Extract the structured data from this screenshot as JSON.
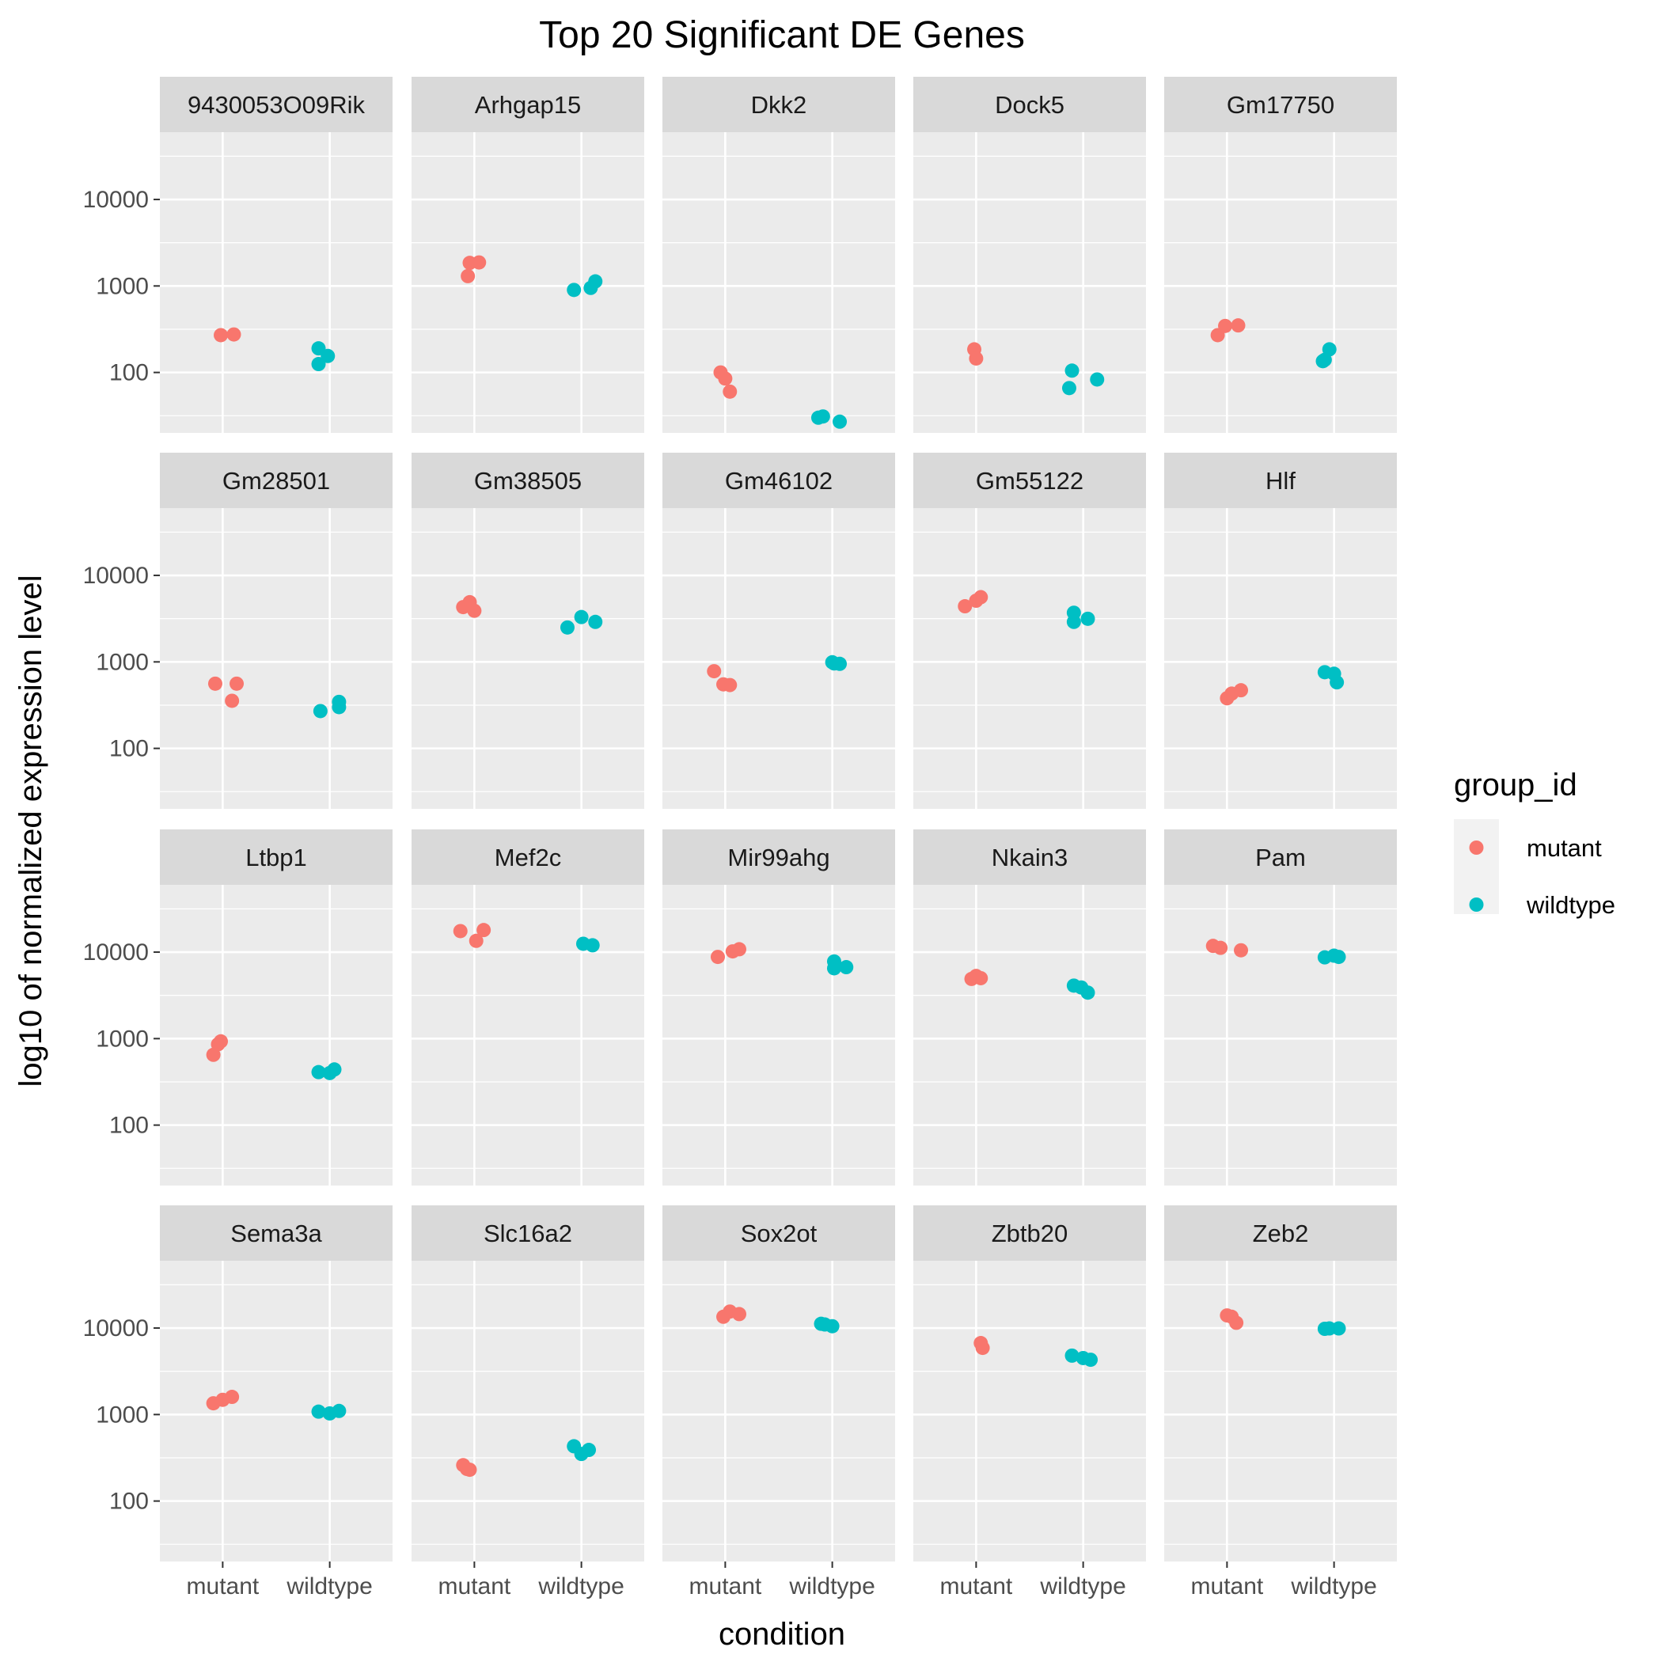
{
  "chart_data": {
    "type": "scatter",
    "title": "Top 20 Significant DE Genes",
    "xlabel": "condition",
    "ylabel": "log10 of normalized expression level",
    "x_categories": [
      "mutant",
      "wildtype"
    ],
    "y_scale": "log10",
    "y_range": [
      20,
      60000
    ],
    "y_ticks": [
      100,
      1000,
      10000
    ],
    "y_tick_labels": [
      "100",
      "1000",
      "10000"
    ],
    "grid": true,
    "facet_layout": {
      "rows": 4,
      "cols": 5
    },
    "legend": {
      "title": "group_id",
      "placement": "right",
      "entries": [
        {
          "label": "mutant",
          "color": "#F8766D"
        },
        {
          "label": "wildtype",
          "color": "#00BFC4"
        }
      ]
    },
    "colors": {
      "mutant": "#F8766D",
      "wildtype": "#00BFC4",
      "panel_bg": "#EBEBEB",
      "strip_bg": "#D9D9D9",
      "grid": "#FFFFFF"
    },
    "panels": [
      {
        "gene": "9430053O09Rik",
        "mutant": [
          [
            -0.02,
            270
          ],
          [
            0.12,
            275
          ]
        ],
        "wildtype": [
          [
            -0.12,
            190
          ],
          [
            -0.12,
            125
          ],
          [
            -0.02,
            155
          ]
        ]
      },
      {
        "gene": "Arhgap15",
        "mutant": [
          [
            -0.07,
            1300
          ],
          [
            -0.05,
            1850
          ],
          [
            0.05,
            1870
          ]
        ],
        "wildtype": [
          [
            -0.08,
            900
          ],
          [
            0.1,
            950
          ],
          [
            0.15,
            1130
          ]
        ]
      },
      {
        "gene": "Dkk2",
        "mutant": [
          [
            -0.05,
            100
          ],
          [
            0.0,
            85
          ],
          [
            0.05,
            60
          ]
        ],
        "wildtype": [
          [
            -0.15,
            30
          ],
          [
            -0.1,
            31
          ],
          [
            0.08,
            27
          ]
        ]
      },
      {
        "gene": "Dock5",
        "mutant": [
          [
            -0.02,
            185
          ],
          [
            0.0,
            145
          ]
        ],
        "wildtype": [
          [
            -0.15,
            66
          ],
          [
            -0.12,
            105
          ],
          [
            0.15,
            83
          ]
        ]
      },
      {
        "gene": "Gm17750",
        "mutant": [
          [
            -0.1,
            270
          ],
          [
            -0.02,
            345
          ],
          [
            0.12,
            350
          ]
        ],
        "wildtype": [
          [
            -0.12,
            135
          ],
          [
            -0.1,
            140
          ],
          [
            -0.05,
            185
          ]
        ]
      },
      {
        "gene": "Gm28501",
        "mutant": [
          [
            -0.08,
            560
          ],
          [
            0.1,
            355
          ],
          [
            0.15,
            560
          ]
        ],
        "wildtype": [
          [
            -0.1,
            270
          ],
          [
            0.1,
            345
          ],
          [
            0.1,
            300
          ]
        ]
      },
      {
        "gene": "Gm38505",
        "mutant": [
          [
            -0.12,
            4300
          ],
          [
            -0.05,
            4900
          ],
          [
            0.0,
            3900
          ]
        ],
        "wildtype": [
          [
            -0.15,
            2500
          ],
          [
            0.0,
            3300
          ],
          [
            0.15,
            2900
          ]
        ]
      },
      {
        "gene": "Gm46102",
        "mutant": [
          [
            -0.12,
            780
          ],
          [
            -0.02,
            550
          ],
          [
            0.05,
            540
          ]
        ],
        "wildtype": [
          [
            0.0,
            990
          ],
          [
            0.02,
            960
          ],
          [
            0.08,
            950
          ]
        ]
      },
      {
        "gene": "Gm55122",
        "mutant": [
          [
            -0.12,
            4400
          ],
          [
            0.0,
            5100
          ],
          [
            0.05,
            5600
          ]
        ],
        "wildtype": [
          [
            -0.1,
            3700
          ],
          [
            -0.1,
            2900
          ],
          [
            0.05,
            3150
          ]
        ]
      },
      {
        "gene": "Hlf",
        "mutant": [
          [
            0.0,
            380
          ],
          [
            0.05,
            430
          ],
          [
            0.15,
            470
          ]
        ],
        "wildtype": [
          [
            -0.1,
            760
          ],
          [
            0.0,
            730
          ],
          [
            0.03,
            580
          ]
        ]
      },
      {
        "gene": "Ltbp1",
        "mutant": [
          [
            -0.1,
            650
          ],
          [
            -0.05,
            860
          ],
          [
            -0.02,
            930
          ]
        ],
        "wildtype": [
          [
            -0.12,
            410
          ],
          [
            0.0,
            400
          ],
          [
            0.05,
            440
          ]
        ]
      },
      {
        "gene": "Mef2c",
        "mutant": [
          [
            -0.15,
            17500
          ],
          [
            0.02,
            13500
          ],
          [
            0.1,
            18000
          ]
        ],
        "wildtype": [
          [
            0.02,
            12500
          ],
          [
            0.12,
            12000
          ]
        ]
      },
      {
        "gene": "Mir99ahg",
        "mutant": [
          [
            -0.08,
            8800
          ],
          [
            0.08,
            10200
          ],
          [
            0.15,
            10800
          ]
        ],
        "wildtype": [
          [
            0.02,
            7800
          ],
          [
            0.02,
            6500
          ],
          [
            0.15,
            6700
          ]
        ]
      },
      {
        "gene": "Nkain3",
        "mutant": [
          [
            -0.05,
            4900
          ],
          [
            0.0,
            5300
          ],
          [
            0.05,
            5000
          ]
        ],
        "wildtype": [
          [
            -0.1,
            4100
          ],
          [
            -0.02,
            3900
          ],
          [
            0.05,
            3400
          ]
        ]
      },
      {
        "gene": "Pam",
        "mutant": [
          [
            -0.15,
            11800
          ],
          [
            -0.07,
            11200
          ],
          [
            0.15,
            10500
          ]
        ],
        "wildtype": [
          [
            -0.1,
            8700
          ],
          [
            0.0,
            9100
          ],
          [
            0.05,
            8800
          ]
        ]
      },
      {
        "gene": "Sema3a",
        "mutant": [
          [
            -0.1,
            1350
          ],
          [
            0.0,
            1480
          ],
          [
            0.1,
            1600
          ]
        ],
        "wildtype": [
          [
            -0.12,
            1080
          ],
          [
            0.0,
            1030
          ],
          [
            0.1,
            1100
          ]
        ]
      },
      {
        "gene": "Slc16a2",
        "mutant": [
          [
            -0.12,
            260
          ],
          [
            -0.08,
            235
          ],
          [
            -0.05,
            230
          ]
        ],
        "wildtype": [
          [
            -0.08,
            430
          ],
          [
            0.0,
            350
          ],
          [
            0.08,
            390
          ]
        ]
      },
      {
        "gene": "Sox2ot",
        "mutant": [
          [
            -0.02,
            13500
          ],
          [
            0.05,
            15500
          ],
          [
            0.15,
            14500
          ]
        ],
        "wildtype": [
          [
            -0.12,
            11200
          ],
          [
            -0.08,
            11000
          ],
          [
            0.0,
            10500
          ]
        ]
      },
      {
        "gene": "Zbtb20",
        "mutant": [
          [
            0.05,
            6700
          ],
          [
            0.07,
            5900
          ]
        ],
        "wildtype": [
          [
            -0.12,
            4800
          ],
          [
            0.0,
            4500
          ],
          [
            0.08,
            4300
          ]
        ]
      },
      {
        "gene": "Zeb2",
        "mutant": [
          [
            0.0,
            14000
          ],
          [
            0.05,
            13500
          ],
          [
            0.1,
            11500
          ]
        ],
        "wildtype": [
          [
            -0.1,
            9800
          ],
          [
            -0.05,
            9900
          ],
          [
            0.05,
            9900
          ]
        ]
      }
    ]
  }
}
